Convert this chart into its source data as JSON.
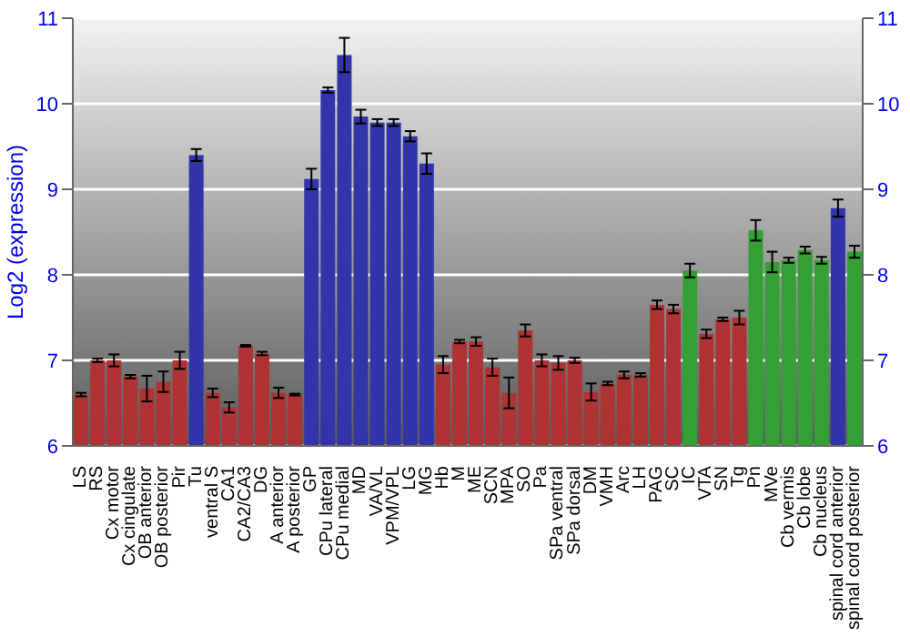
{
  "chart_data": {
    "type": "bar",
    "ylabel": "Log2 (expression)",
    "categories": [
      "LS",
      "RS",
      "Cx motor",
      "Cx cingulate",
      "OB anterior",
      "OB posterior",
      "Pir",
      "Tu",
      "ventral S",
      "CA1",
      "CA2/CA3",
      "DG",
      "A anterior",
      "A posterior",
      "GP",
      "CPu lateral",
      "CPu medial",
      "MD",
      "VA/VL",
      "VPM/VPL",
      "LG",
      "MG",
      "Hb",
      "M",
      "ME",
      "SCN",
      "MPA",
      "SO",
      "Pa",
      "SPa ventral",
      "SPa dorsal",
      "DM",
      "VMH",
      "Arc",
      "LH",
      "PAG",
      "SC",
      "IC",
      "VTA",
      "SN",
      "Tg",
      "Pn",
      "MVe",
      "Cb vermis",
      "Cb lobe",
      "Cb nucleus",
      "spinal cord anterior",
      "spinal cord posterior"
    ],
    "values": [
      6.6,
      7.0,
      7.0,
      6.81,
      6.67,
      6.75,
      7.0,
      9.4,
      6.62,
      6.45,
      7.17,
      7.08,
      6.62,
      6.6,
      9.12,
      10.16,
      10.57,
      9.85,
      9.78,
      9.78,
      9.62,
      9.3,
      6.95,
      7.22,
      7.22,
      6.92,
      6.62,
      7.35,
      7.0,
      6.97,
      7.0,
      6.63,
      6.73,
      6.83,
      6.83,
      7.65,
      7.6,
      8.05,
      7.31,
      7.48,
      7.5,
      8.52,
      8.15,
      8.17,
      8.29,
      8.17,
      8.78,
      8.27
    ],
    "errors": [
      0.02,
      0.02,
      0.07,
      0.02,
      0.15,
      0.12,
      0.1,
      0.07,
      0.05,
      0.06,
      0.01,
      0.02,
      0.06,
      0.01,
      0.12,
      0.03,
      0.2,
      0.08,
      0.04,
      0.04,
      0.06,
      0.12,
      0.1,
      0.02,
      0.05,
      0.1,
      0.18,
      0.07,
      0.07,
      0.08,
      0.03,
      0.1,
      0.02,
      0.04,
      0.02,
      0.05,
      0.05,
      0.08,
      0.05,
      0.02,
      0.08,
      0.12,
      0.12,
      0.03,
      0.04,
      0.04,
      0.1,
      0.07
    ],
    "colors": [
      "#b03333",
      "#b03333",
      "#b03333",
      "#b03333",
      "#b03333",
      "#b03333",
      "#b03333",
      "#3333aa",
      "#b03333",
      "#b03333",
      "#b03333",
      "#b03333",
      "#b03333",
      "#b03333",
      "#3333aa",
      "#3333aa",
      "#3333aa",
      "#3333aa",
      "#3333aa",
      "#3333aa",
      "#3333aa",
      "#3333aa",
      "#b03333",
      "#b03333",
      "#b03333",
      "#b03333",
      "#b03333",
      "#b03333",
      "#b03333",
      "#b03333",
      "#b03333",
      "#b03333",
      "#b03333",
      "#b03333",
      "#b03333",
      "#b03333",
      "#b03333",
      "#33a033",
      "#b03333",
      "#b03333",
      "#b03333",
      "#33a033",
      "#33a033",
      "#33a033",
      "#33a033",
      "#33a033",
      "#3333aa",
      "#33a033"
    ],
    "ylim": [
      6,
      11
    ],
    "yticks": [
      6,
      7,
      8,
      9,
      10,
      11
    ],
    "y2lim": [
      6,
      11
    ],
    "y2ticks": [
      6,
      7,
      8,
      9,
      10,
      11
    ],
    "grid": "y"
  }
}
